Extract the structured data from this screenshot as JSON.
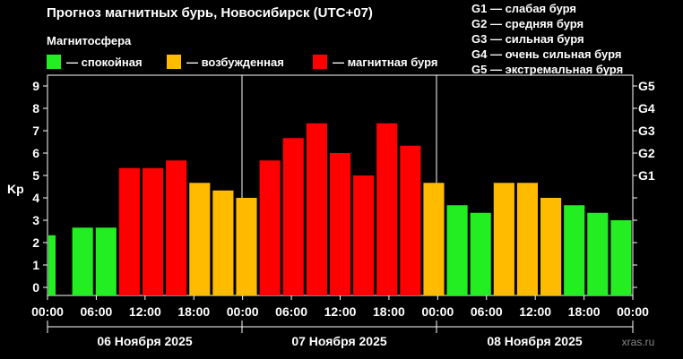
{
  "header": {
    "title": "Прогноз магнитных бурь, Новосибирск (UTC+07)",
    "legend_title": "Магнитосфера"
  },
  "legend": [
    {
      "label": "— спокойная",
      "color": "#22ee22"
    },
    {
      "label": "— возбужденная",
      "color": "#ffbb00"
    },
    {
      "label": "— магнитная буря",
      "color": "#ff0000"
    }
  ],
  "g_scale": [
    "G1 — слабая буря",
    "G2 — средняя буря",
    "G3 — сильная буря",
    "G4 — очень сильная буря",
    "G5 — экстремальная буря"
  ],
  "watermark": "xras.ru",
  "chart_data": {
    "type": "bar",
    "ylabel": "Kp",
    "ylim": [
      0,
      9
    ],
    "y_ticks": [
      "0",
      "1",
      "2",
      "3",
      "4",
      "5",
      "6",
      "7",
      "8",
      "9"
    ],
    "right_ticks": [
      {
        "value": 5,
        "label": "G1"
      },
      {
        "value": 6,
        "label": "G2"
      },
      {
        "value": 7,
        "label": "G3"
      },
      {
        "value": 8,
        "label": "G4"
      },
      {
        "value": 9,
        "label": "G5"
      }
    ],
    "x_tick_labels": [
      "00:00",
      "06:00",
      "12:00",
      "18:00",
      "00:00",
      "06:00",
      "12:00",
      "18:00",
      "00:00",
      "06:00",
      "12:00",
      "18:00",
      "00:00"
    ],
    "days": [
      "06 Ноября 2025",
      "07 Ноября 2025",
      "08 Ноября 2025"
    ],
    "values": [
      2.33,
      2.67,
      2.67,
      5.33,
      5.33,
      5.67,
      4.67,
      4.33,
      4.0,
      5.67,
      6.67,
      7.33,
      6.0,
      5.0,
      7.33,
      6.33,
      4.67,
      3.67,
      3.33,
      4.67,
      4.67,
      4.0,
      3.67,
      3.33,
      3.0
    ],
    "colors": {
      "quiet": "#22ee22",
      "active": "#ffbb00",
      "storm": "#ff0000"
    }
  }
}
